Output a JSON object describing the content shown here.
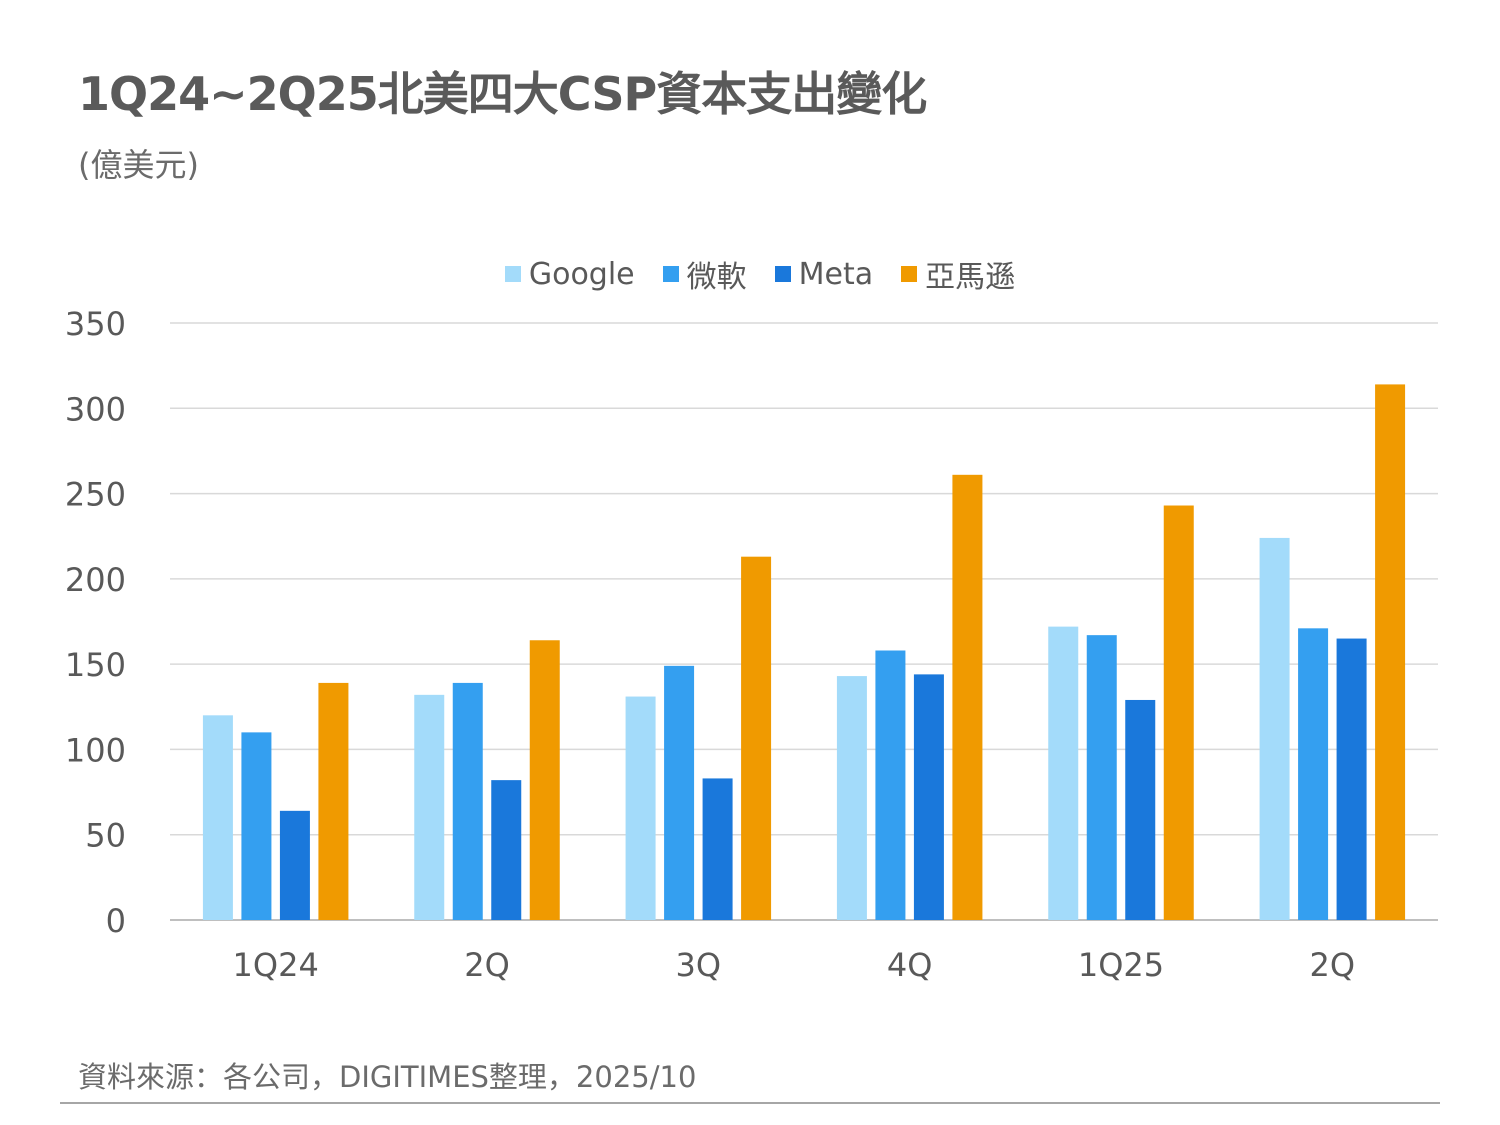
{
  "title": "1Q24~2Q25北美四大CSP資本支出變化",
  "subtitle": "(億美元)",
  "source": "資料來源：各公司，DIGITIMES整理，2025/10",
  "chart_data": {
    "type": "bar",
    "title": "1Q24~2Q25北美四大CSP資本支出變化",
    "ylabel": "",
    "xlabel": "",
    "ylim": [
      0,
      350
    ],
    "yticks": [
      0,
      50,
      100,
      150,
      200,
      250,
      300,
      350
    ],
    "grid": true,
    "legend_position": "top-center",
    "categories": [
      "1Q24",
      "2Q",
      "3Q",
      "4Q",
      "1Q25",
      "2Q"
    ],
    "series": [
      {
        "name": "Google",
        "color": "#a3dbfa",
        "values": [
          120,
          132,
          131,
          143,
          172,
          224
        ]
      },
      {
        "name": "微軟",
        "color": "#349ff0",
        "values": [
          110,
          139,
          149,
          158,
          167,
          171
        ]
      },
      {
        "name": "Meta",
        "color": "#1a78db",
        "values": [
          64,
          82,
          83,
          144,
          129,
          165
        ]
      },
      {
        "name": "亞馬遜",
        "color": "#f09a00",
        "values": [
          139,
          164,
          213,
          261,
          243,
          314
        ]
      }
    ]
  }
}
